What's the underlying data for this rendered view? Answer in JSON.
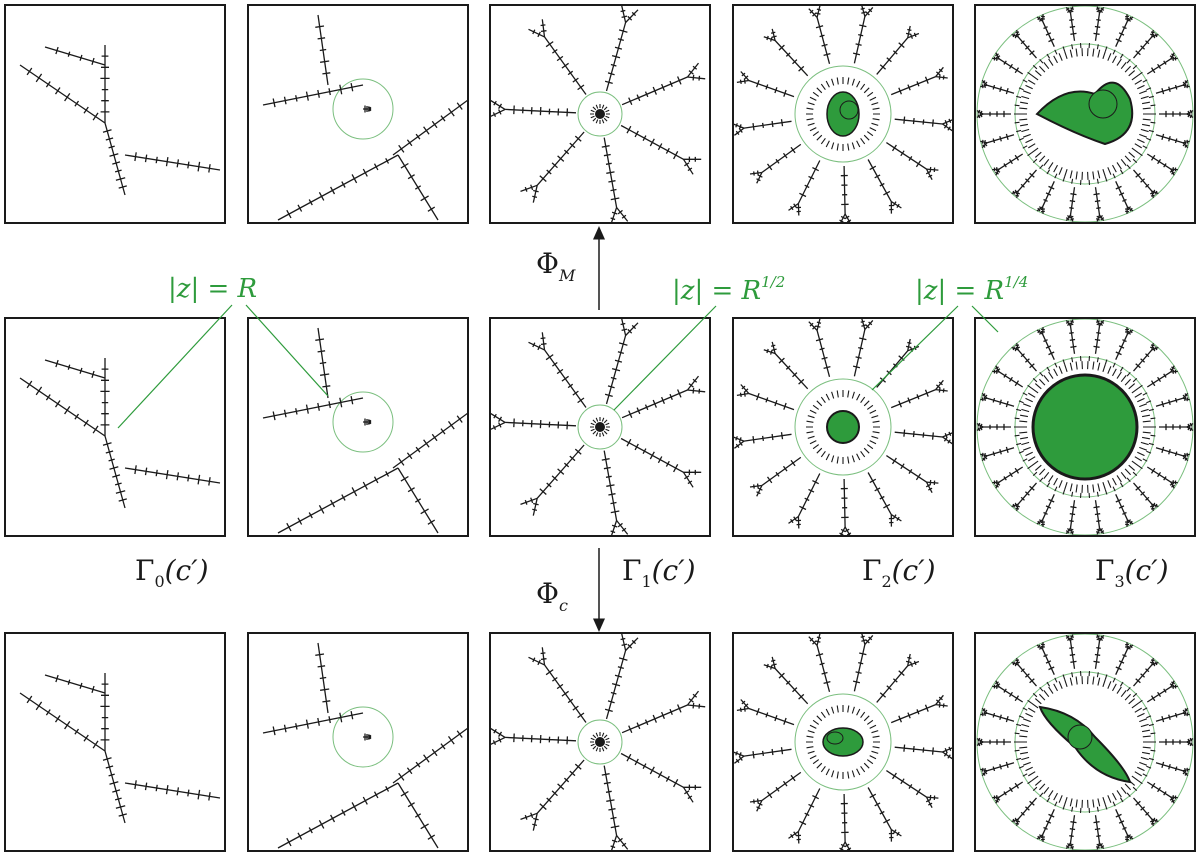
{
  "colors": {
    "ink": "#1a1a1a",
    "fill": "#2e9b3c",
    "circle": "#7bbf7f",
    "label": "#2e9b3c"
  },
  "rows": [
    {
      "name": "top",
      "panels": [
        "p0",
        "p1",
        "p2",
        "p3",
        "p4"
      ]
    },
    {
      "name": "middle",
      "panels": [
        "p0",
        "p1",
        "p2",
        "p3",
        "p4"
      ]
    },
    {
      "name": "bottom",
      "panels": [
        "p0",
        "p1",
        "p2",
        "p3",
        "p4"
      ]
    }
  ],
  "arrows": {
    "up": {
      "label_main": "Φ",
      "label_sub": "M"
    },
    "down": {
      "label_main": "Φ",
      "label_sub": "c"
    }
  },
  "circle_labels": [
    {
      "base": "|z| = R",
      "exp": ""
    },
    {
      "base": "|z| = R",
      "exp": "1/2"
    },
    {
      "base": "|z| = R",
      "exp": "1/4"
    }
  ],
  "gamma_labels": [
    {
      "main": "Γ",
      "sub": "0",
      "arg": "(c′)"
    },
    {
      "main": "Γ",
      "sub": "1",
      "arg": "(c′)"
    },
    {
      "main": "Γ",
      "sub": "2",
      "arg": "(c′)"
    },
    {
      "main": "Γ",
      "sub": "3",
      "arg": "(c′)"
    }
  ]
}
